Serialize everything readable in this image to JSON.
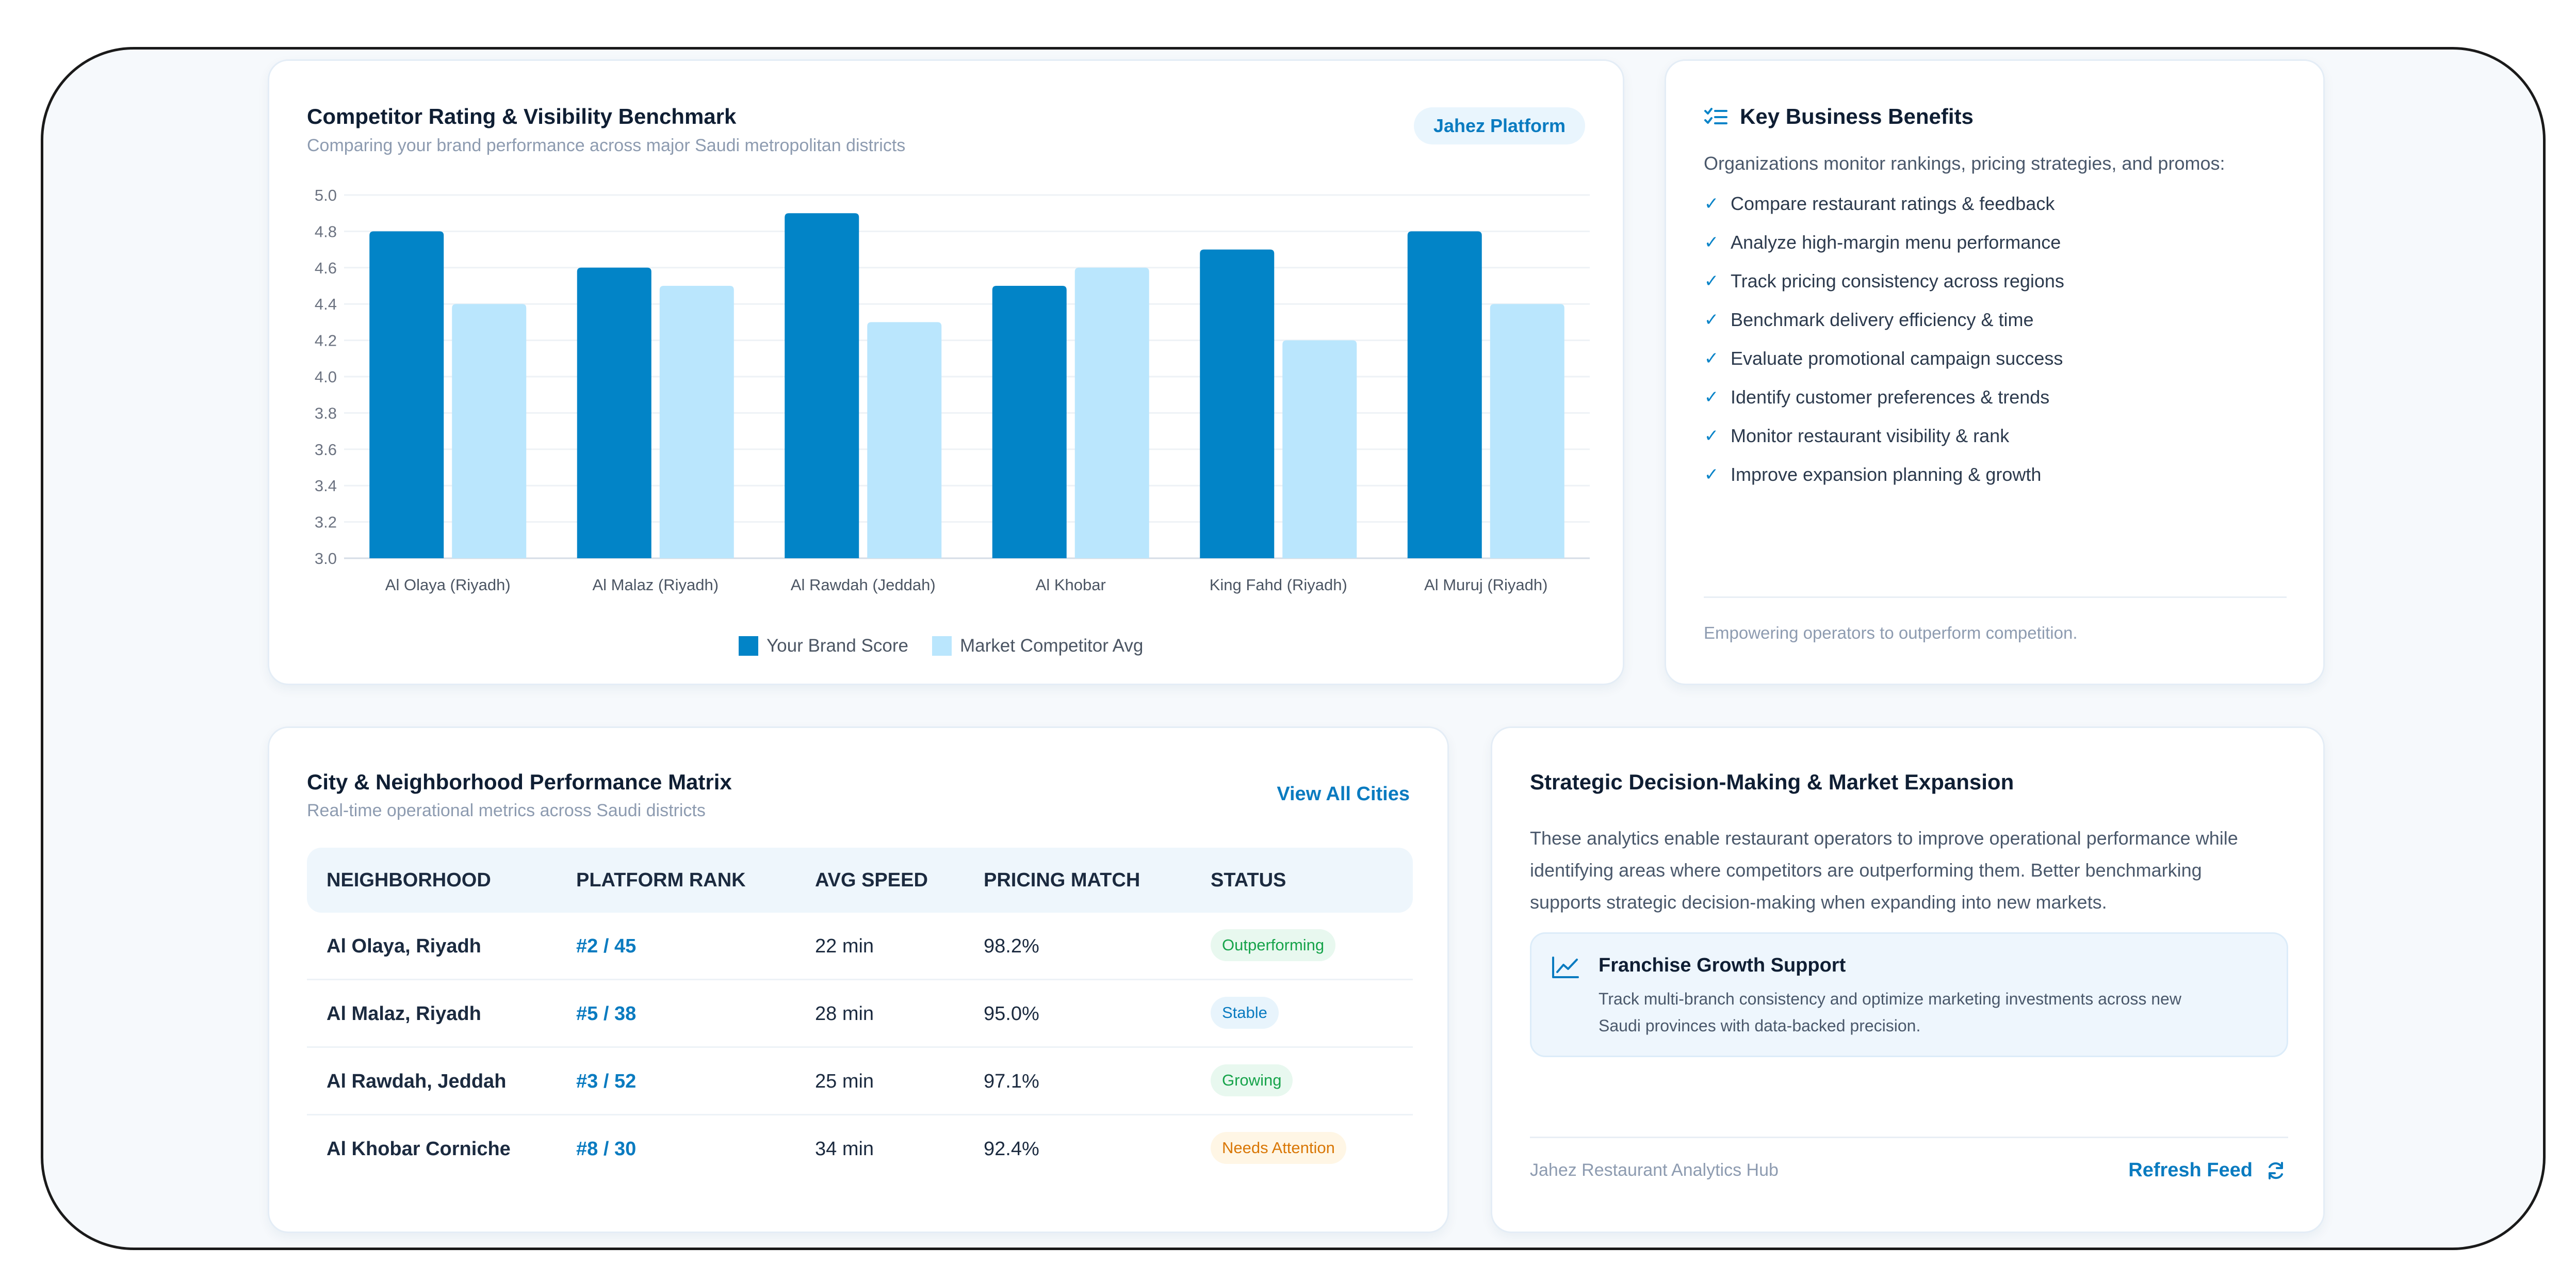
{
  "chart_card": {
    "title": "Competitor Rating & Visibility Benchmark",
    "subtitle": "Comparing your brand performance across major Saudi metropolitan districts",
    "platform_badge": "Jahez Platform"
  },
  "chart_data": {
    "type": "bar",
    "title": "",
    "xlabel": "",
    "ylabel": "",
    "categories": [
      "Al Olaya (Riyadh)",
      "Al Malaz (Riyadh)",
      "Al Rawdah (Jeddah)",
      "Al Khobar",
      "King Fahd (Riyadh)",
      "Al Muruj (Riyadh)"
    ],
    "series": [
      {
        "name": "Your Brand Score",
        "color": "#0284c7",
        "values": [
          4.8,
          4.6,
          4.9,
          4.5,
          4.7,
          4.8
        ]
      },
      {
        "name": "Market Competitor Avg",
        "color": "#bae6fd",
        "values": [
          4.4,
          4.5,
          4.3,
          4.6,
          4.2,
          4.4
        ]
      }
    ],
    "ylim": [
      3.0,
      5.0
    ],
    "yticks": [
      "3.0",
      "3.2",
      "3.4",
      "3.6",
      "3.8",
      "4.0",
      "4.2",
      "4.4",
      "4.6",
      "4.8",
      "5.0"
    ],
    "grid": true,
    "legend_position": "bottom"
  },
  "benefits": {
    "title": "Key Business Benefits",
    "icon": "list-check-icon",
    "intro": "Organizations monitor rankings, pricing strategies, and promos:",
    "items": [
      "Compare restaurant ratings & feedback",
      "Analyze high-margin menu performance",
      "Track pricing consistency across regions",
      "Benchmark delivery efficiency & time",
      "Evaluate promotional campaign success",
      "Identify customer preferences & trends",
      "Monitor restaurant visibility & rank",
      "Improve expansion planning & growth"
    ],
    "footer": "Empowering operators to outperform competition."
  },
  "matrix": {
    "title": "City & Neighborhood Performance Matrix",
    "subtitle": "Real-time operational metrics across Saudi districts",
    "view_all": "View All Cities",
    "columns": [
      "NEIGHBORHOOD",
      "PLATFORM RANK",
      "AVG SPEED",
      "PRICING MATCH",
      "STATUS"
    ],
    "rows": [
      {
        "neighborhood": "Al Olaya, Riyadh",
        "rank": "#2 / 45",
        "speed": "22 min",
        "pricing": "98.2%",
        "status": "Outperforming"
      },
      {
        "neighborhood": "Al Malaz, Riyadh",
        "rank": "#5 / 38",
        "speed": "28 min",
        "pricing": "95.0%",
        "status": "Stable"
      },
      {
        "neighborhood": "Al Rawdah, Jeddah",
        "rank": "#3 / 52",
        "speed": "25 min",
        "pricing": "97.1%",
        "status": "Growing"
      },
      {
        "neighborhood": "Al Khobar Corniche",
        "rank": "#8 / 30",
        "speed": "34 min",
        "pricing": "92.4%",
        "status": "Needs Attention"
      }
    ],
    "status_colors": {
      "Outperforming": {
        "bg": "#e8f8ef",
        "fg": "#16a34a"
      },
      "Stable": {
        "bg": "#e8f4fc",
        "fg": "#0a7bc0"
      },
      "Growing": {
        "bg": "#e8f8ef",
        "fg": "#16a34a"
      },
      "Needs Attention": {
        "bg": "#fff6e5",
        "fg": "#d97706"
      }
    }
  },
  "strategy": {
    "title": "Strategic Decision-Making & Market Expansion",
    "paragraph_lines": [
      "These analytics enable restaurant operators to improve operational performance while",
      "identifying areas where competitors are outperforming them. Better benchmarking",
      "supports strategic decision-making when expanding into new markets."
    ],
    "support_title": "Franchise Growth Support",
    "support_icon": "trend-chart-icon",
    "support_lines": [
      "Track multi-branch consistency and optimize marketing investments across new",
      "Saudi provinces with data-backed precision."
    ],
    "footer_label": "Jahez Restaurant Analytics Hub",
    "refresh_label": "Refresh Feed",
    "refresh_icon": "refresh-icon"
  }
}
